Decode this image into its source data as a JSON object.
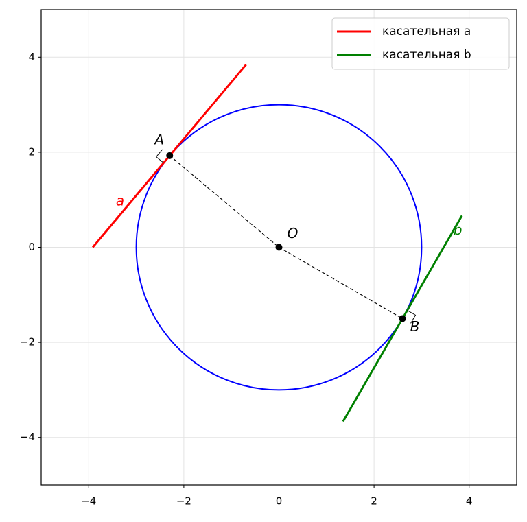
{
  "chart_data": {
    "type": "geometry",
    "xlim": [
      -5,
      5
    ],
    "ylim": [
      -5,
      5
    ],
    "xticks": [
      {
        "value": -4,
        "label": "−4"
      },
      {
        "value": -2,
        "label": "−2"
      },
      0,
      2,
      4
    ],
    "yticks": [
      {
        "value": -4,
        "label": "−4"
      },
      {
        "value": -2,
        "label": "−2"
      },
      0,
      2,
      4
    ],
    "grid": true,
    "circle": {
      "center": [
        0,
        0
      ],
      "radius": 3,
      "color": "#0000ff"
    },
    "points": [
      {
        "label": "A",
        "x": -2.298,
        "y": 1.928
      },
      {
        "label": "O",
        "x": 0,
        "y": 0
      },
      {
        "label": "B",
        "x": 2.598,
        "y": -1.5
      }
    ],
    "series": [
      {
        "name": "касательная a",
        "label": "a",
        "color": "#ff0000",
        "x": [
          -3.916,
          -0.691
        ],
        "y": [
          0,
          3.843
        ]
      },
      {
        "name": "касательная b",
        "label": "b",
        "color": "#008000",
        "x": [
          1.348,
          3.848
        ],
        "y": [
          -3.665,
          0.665
        ]
      }
    ],
    "legend": "upper right"
  }
}
